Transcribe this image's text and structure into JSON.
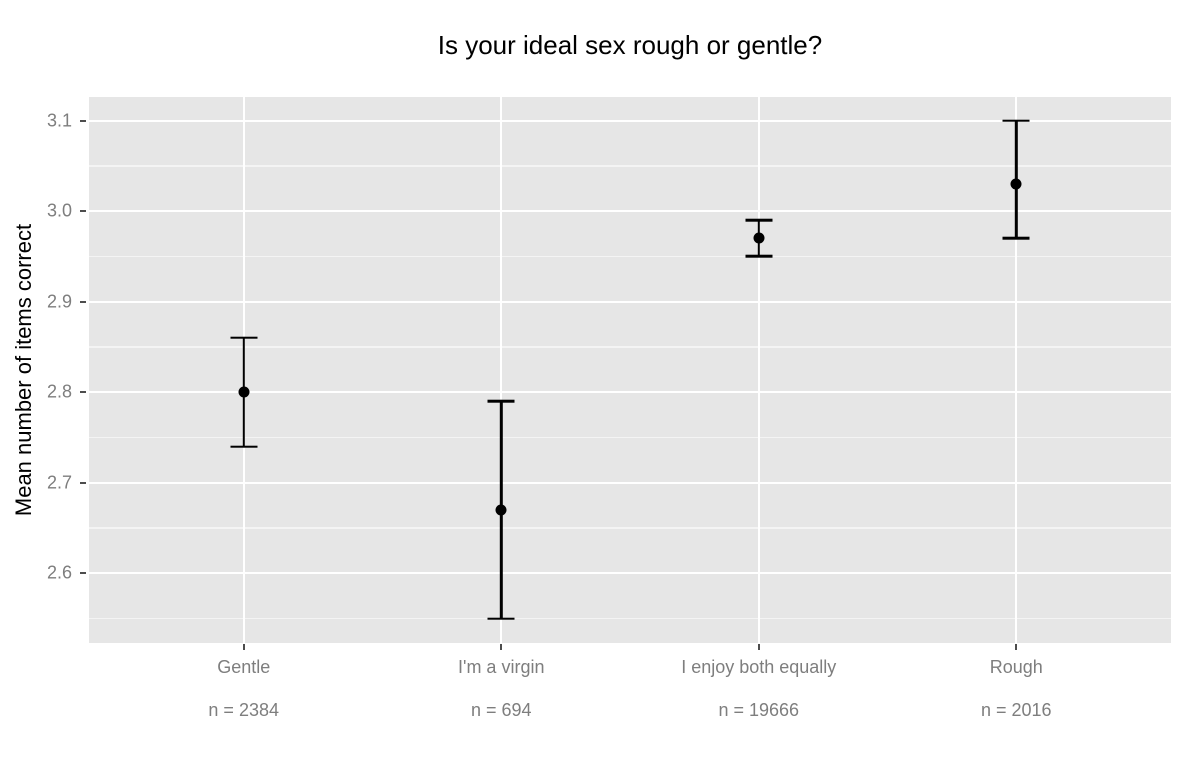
{
  "title": "Is your ideal sex rough or gentle?",
  "colors": {
    "panel_bg": "#E6E6E6",
    "grid_major": "#FFFFFF",
    "grid_minor": "#F2F2F2",
    "axis_text": "#7E7E7E",
    "tick_mark": "#4D4D4D",
    "point": "#000000",
    "title_text": "#000000"
  },
  "chart_data": {
    "type": "scatter",
    "title": "Is your ideal sex rough or gentle?",
    "xlabel": "",
    "ylabel": "Mean number of items correct",
    "categories": [
      "Gentle",
      "I'm a virgin",
      "I enjoy both equally",
      "Rough"
    ],
    "sample_size_labels": [
      "n = 2384",
      "n = 694",
      "n = 19666",
      "n = 2016"
    ],
    "n_values": [
      2384,
      694,
      19666,
      2016
    ],
    "series": [
      {
        "name": "mean",
        "values": [
          2.8,
          2.67,
          2.97,
          3.03
        ]
      }
    ],
    "error_low": [
      2.74,
      2.55,
      2.95,
      2.97
    ],
    "error_high": [
      2.86,
      2.79,
      2.99,
      3.1
    ],
    "ylim": [
      2.523,
      3.126
    ],
    "yticks": [
      2.6,
      2.7,
      2.8,
      2.9,
      3.0,
      3.1
    ],
    "ytick_labels": [
      "2.6",
      "2.7",
      "2.8",
      "2.9",
      "3.0",
      "3.1"
    ],
    "yticks_minor": [
      2.55,
      2.65,
      2.75,
      2.85,
      2.95,
      3.05
    ],
    "x_positions": [
      0.143,
      0.381,
      0.619,
      0.857
    ],
    "grid": true,
    "legend": false,
    "panel_style": "ggplot-gray"
  }
}
